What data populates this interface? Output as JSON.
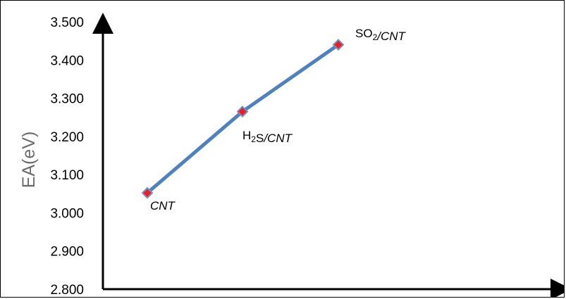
{
  "chart_data": {
    "type": "line",
    "title": "",
    "xlabel": "",
    "ylabel": "EA(eV)",
    "ylim": [
      2.8,
      3.5
    ],
    "y_ticks": [
      "3.500",
      "3.400",
      "3.300",
      "3.200",
      "3.100",
      "3.000",
      "2.900",
      "2.800"
    ],
    "grid": false,
    "legend": "none",
    "series": [
      {
        "color": "#4f81bd",
        "marker_color": "#e8202a",
        "marker_edge": "#7b8fb8",
        "points": [
          {
            "label": "CNT",
            "label_parts": [
              {
                "t": "CNT",
                "italic": true
              }
            ],
            "y": 3.052
          },
          {
            "label": "H2S/CNT",
            "label_parts": [
              {
                "t": "H"
              },
              {
                "t": "2",
                "sub": true
              },
              {
                "t": "S"
              },
              {
                "t": "/CNT",
                "italic": true
              }
            ],
            "y": 3.265
          },
          {
            "label": "SO2/CNT",
            "label_parts": [
              {
                "t": "SO"
              },
              {
                "t": "2",
                "sub": true
              },
              {
                "t": "/CNT",
                "italic": true
              }
            ],
            "y": 3.44
          }
        ]
      }
    ]
  }
}
